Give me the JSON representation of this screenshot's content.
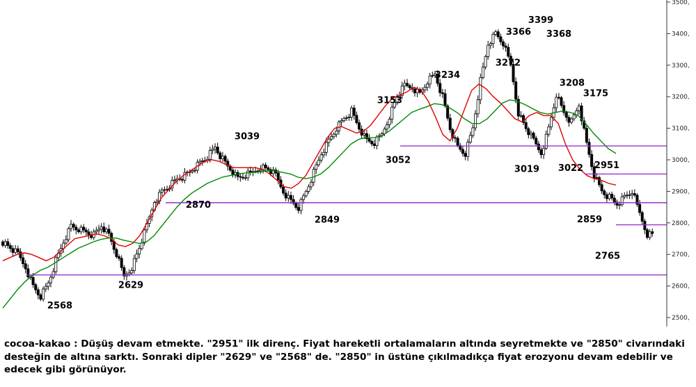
{
  "chart_data": {
    "type": "line",
    "instrument": "cocoa-kakao",
    "title": "",
    "xlabel": "",
    "ylabel": "",
    "ylim": [
      2480,
      3510
    ],
    "y_ticks": [
      "2500,",
      "2600,",
      "2700,",
      "2800,",
      "2900,",
      "3000,",
      "3100,",
      "3200,",
      "3300,",
      "3400,",
      "3500,"
    ],
    "grid": false,
    "candles_approx_close": [
      2740,
      2720,
      2700,
      2660,
      2600,
      2568,
      2610,
      2680,
      2740,
      2790,
      2780,
      2770,
      2760,
      2790,
      2760,
      2700,
      2629,
      2660,
      2720,
      2790,
      2870,
      2900,
      2920,
      2940,
      2950,
      2970,
      2990,
      3010,
      3039,
      3000,
      2970,
      2940,
      2950,
      2960,
      2980,
      2970,
      2950,
      2900,
      2870,
      2849,
      2900,
      2960,
      3020,
      3060,
      3100,
      3130,
      3153,
      3100,
      3060,
      3052,
      3080,
      3140,
      3200,
      3234,
      3230,
      3210,
      3250,
      3272,
      3200,
      3100,
      3040,
      3019,
      3100,
      3250,
      3366,
      3399,
      3368,
      3300,
      3150,
      3100,
      3060,
      3022,
      3100,
      3208,
      3150,
      3120,
      3175,
      3050,
      2951,
      2900,
      2880,
      2859,
      2880,
      2900,
      2830,
      2765
    ],
    "series": [
      {
        "name": "",
        "color": "#e00000",
        "values": [
          2680,
          2690,
          2700,
          2705,
          2700,
          2690,
          2680,
          2690,
          2710,
          2730,
          2750,
          2755,
          2760,
          2765,
          2760,
          2750,
          2730,
          2725,
          2735,
          2760,
          2800,
          2840,
          2880,
          2905,
          2930,
          2950,
          2965,
          2980,
          2995,
          3000,
          2995,
          2985,
          2975,
          2975,
          2975,
          2975,
          2970,
          2955,
          2935,
          2915,
          2910,
          2925,
          2950,
          2990,
          3030,
          3070,
          3100,
          3105,
          3095,
          3085,
          3090,
          3110,
          3140,
          3170,
          3195,
          3205,
          3215,
          3230,
          3220,
          3185,
          3135,
          3080,
          3060,
          3100,
          3160,
          3220,
          3240,
          3225,
          3200,
          3180,
          3155,
          3130,
          3120,
          3140,
          3150,
          3140,
          3140,
          3115,
          3050,
          3000,
          2970,
          2950,
          2940,
          2935,
          2925,
          2920
        ]
      },
      {
        "name": "",
        "color": "#008800",
        "values": [
          2530,
          2560,
          2590,
          2615,
          2635,
          2650,
          2660,
          2675,
          2690,
          2705,
          2720,
          2730,
          2740,
          2748,
          2752,
          2752,
          2745,
          2740,
          2735,
          2740,
          2760,
          2790,
          2820,
          2850,
          2875,
          2895,
          2910,
          2925,
          2935,
          2945,
          2950,
          2955,
          2958,
          2960,
          2962,
          2965,
          2965,
          2960,
          2955,
          2945,
          2940,
          2945,
          2955,
          2975,
          3000,
          3025,
          3050,
          3065,
          3070,
          3070,
          3075,
          3090,
          3110,
          3130,
          3150,
          3160,
          3168,
          3178,
          3175,
          3165,
          3150,
          3130,
          3115,
          3115,
          3130,
          3155,
          3180,
          3190,
          3185,
          3175,
          3162,
          3150,
          3145,
          3150,
          3155,
          3150,
          3140,
          3115,
          3085,
          3060,
          3035,
          3020
        ]
      }
    ],
    "horizontal_levels": [
      3044,
      2955,
      2864,
      2794,
      2635
    ],
    "level_color": "#9933cc",
    "annotations": [
      {
        "text": "2568",
        "value": 2568
      },
      {
        "text": "2629",
        "value": 2629
      },
      {
        "text": "2870",
        "value": 2870
      },
      {
        "text": "3039",
        "value": 3039
      },
      {
        "text": "2849",
        "value": 2849
      },
      {
        "text": "3153",
        "value": 3153
      },
      {
        "text": "3052",
        "value": 3052
      },
      {
        "text": "3234",
        "value": 3234
      },
      {
        "text": "3272",
        "value": 3272
      },
      {
        "text": "3366",
        "value": 3366
      },
      {
        "text": "3399",
        "value": 3399
      },
      {
        "text": "3368",
        "value": 3368
      },
      {
        "text": "3019",
        "value": 3019
      },
      {
        "text": "3208",
        "value": 3208
      },
      {
        "text": "3022",
        "value": 3022
      },
      {
        "text": "3175",
        "value": 3175
      },
      {
        "text": "2951",
        "value": 2951
      },
      {
        "text": "2859",
        "value": 2859
      },
      {
        "text": "2765",
        "value": 2765
      }
    ]
  },
  "caption": "cocoa-kakao : Düşüş devam etmekte. \"2951\" ilk direnç. Fiyat hareketli ortalamaların altında seyretmekte ve \"2850\" civarındaki desteğin de altına sarktı. Sonraki dipler \"2629\" ve \"2568\" de. \"2850\" in üstüne çıkılmadıkça fiyat erozyonu devam edebilir ve edecek gibi görünüyor."
}
